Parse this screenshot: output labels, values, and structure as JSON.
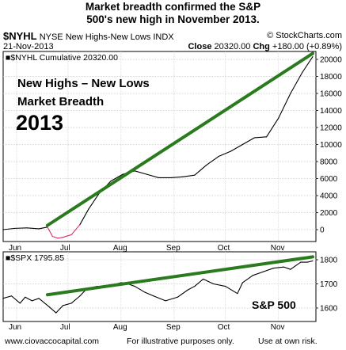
{
  "headline": [
    "Market breadth confirmed the S&P",
    "500's new high in November 2013."
  ],
  "symbol": "$NYHL",
  "symbol_desc": "NYSE New Highs-New Lows INDX",
  "brand": "© StockCharts.com",
  "date": "21-Nov-2013",
  "close_label": "Close",
  "close_value": "20320.00",
  "chg_label": "Chg",
  "chg_value": "+180.00 (+0.89%)",
  "legend_top": "■$NYHL  Cumulative 20320.00",
  "legend_bottom": "■$SPX  1795.85",
  "annotation": {
    "line1": "New Highs – New Lows",
    "line2": "Market Breadth",
    "year": "2013",
    "sp": "S&P 500"
  },
  "footer": {
    "left": "www.ciovaccocapital.com",
    "mid": "For illustrative purposes only.",
    "right": "Use at own risk."
  },
  "colors": {
    "trend": "#2a7a1e",
    "price": "#000000",
    "below_zero": "#e0286a",
    "grid": "#cccccc"
  },
  "chart_data": [
    {
      "type": "line",
      "title": "$NYHL Cumulative",
      "categories": [
        "Jun",
        "Jul",
        "Aug",
        "Sep",
        "Oct",
        "Nov"
      ],
      "ylim": [
        -1000,
        21000
      ],
      "yticks": [
        0,
        2000,
        4000,
        6000,
        8000,
        10000,
        12000,
        14000,
        16000,
        18000,
        20000
      ],
      "grid": true,
      "series": [
        {
          "name": "$NYHL",
          "x": [
            "May-24",
            "May-31",
            "Jun-07",
            "Jun-14",
            "Jun-19",
            "Jun-22",
            "Jun-25",
            "Jun-28",
            "Jul-03",
            "Jul-08",
            "Jul-13",
            "Jul-19",
            "Jul-26",
            "Aug-02",
            "Aug-09",
            "Aug-16",
            "Aug-23",
            "Aug-30",
            "Sep-06",
            "Sep-13",
            "Sep-20",
            "Sep-27",
            "Oct-04",
            "Oct-11",
            "Oct-18",
            "Oct-25",
            "Nov-01",
            "Nov-08",
            "Nov-15",
            "Nov-21"
          ],
          "values": [
            0,
            150,
            200,
            100,
            300,
            -800,
            -1000,
            -900,
            -600,
            600,
            2400,
            4200,
            5700,
            6500,
            6900,
            6500,
            6100,
            6100,
            6200,
            6400,
            7600,
            8600,
            9200,
            10000,
            10800,
            10900,
            13100,
            16000,
            18500,
            20320
          ]
        }
      ],
      "trendline": {
        "from": [
          "Jun-19",
          500
        ],
        "to": [
          "Nov-21",
          20700
        ]
      }
    },
    {
      "type": "line",
      "title": "$SPX",
      "categories": [
        "Jun",
        "Jul",
        "Aug",
        "Sep",
        "Oct",
        "Nov"
      ],
      "ylim": [
        1560,
        1820
      ],
      "yticks": [
        1600,
        1700,
        1800
      ],
      "grid": true,
      "series": [
        {
          "name": "$SPX",
          "x": [
            "May-24",
            "May-29",
            "Jun-03",
            "Jun-06",
            "Jun-10",
            "Jun-14",
            "Jun-20",
            "Jun-24",
            "Jun-28",
            "Jul-03",
            "Jul-08",
            "Jul-12",
            "Jul-18",
            "Jul-24",
            "Aug-01",
            "Aug-05",
            "Aug-09",
            "Aug-15",
            "Aug-20",
            "Aug-27",
            "Sep-03",
            "Sep-09",
            "Sep-13",
            "Sep-18",
            "Sep-24",
            "Oct-01",
            "Oct-08",
            "Oct-11",
            "Oct-17",
            "Oct-23",
            "Oct-29",
            "Nov-04",
            "Nov-08",
            "Nov-14",
            "Nov-18",
            "Nov-21"
          ],
          "values": [
            1640,
            1650,
            1620,
            1645,
            1630,
            1640,
            1605,
            1580,
            1610,
            1620,
            1650,
            1680,
            1690,
            1690,
            1705,
            1700,
            1690,
            1665,
            1650,
            1630,
            1645,
            1675,
            1690,
            1720,
            1700,
            1690,
            1660,
            1705,
            1735,
            1750,
            1765,
            1770,
            1760,
            1790,
            1790,
            1795
          ]
        }
      ],
      "trendline": {
        "from": [
          "Jun-19",
          1655
        ],
        "to": [
          "Nov-21",
          1812
        ]
      }
    }
  ]
}
